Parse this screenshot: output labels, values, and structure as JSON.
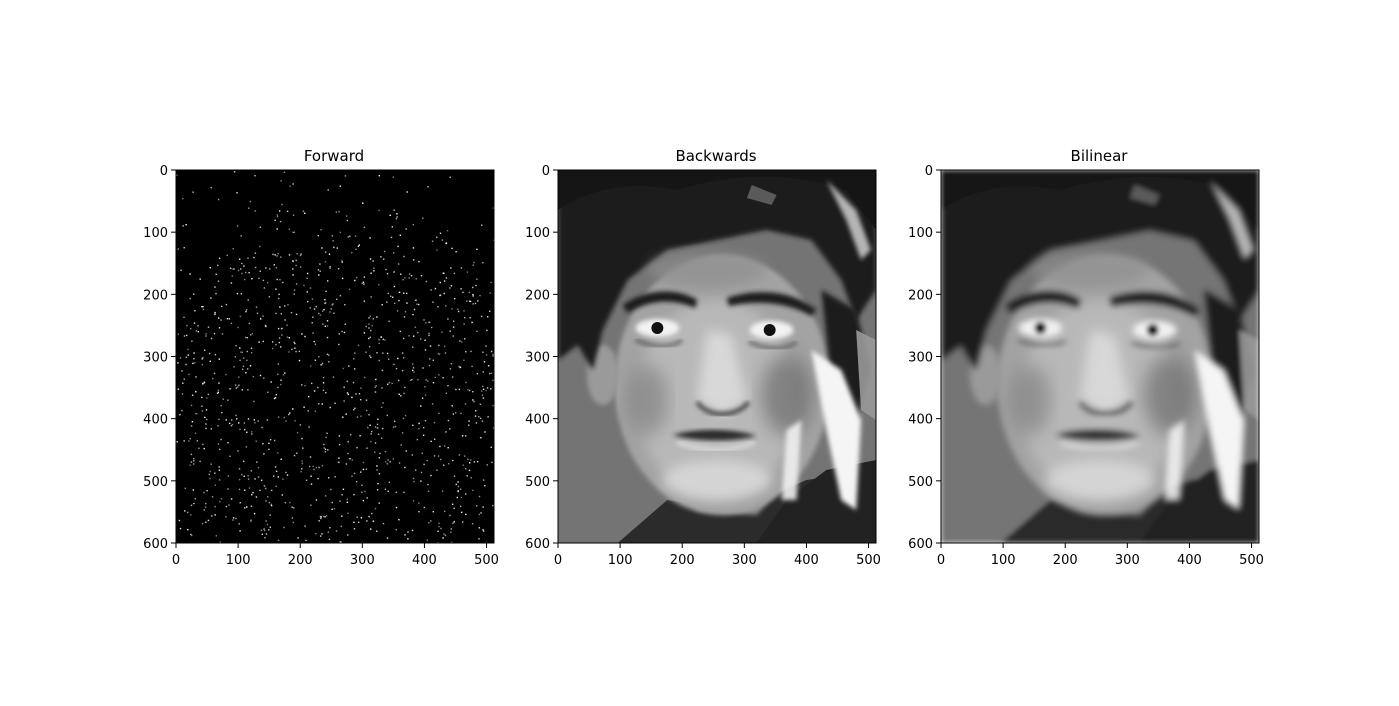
{
  "chart_data": [
    {
      "type": "heatmap",
      "title": "Forward",
      "image_content": "sparse scattered white pixels on black (forward-mapped warp with holes)",
      "colormap": "gray",
      "xlim": [
        0,
        512
      ],
      "ylim": [
        600,
        0
      ],
      "xticks": [
        0,
        100,
        200,
        300,
        400,
        500
      ],
      "yticks": [
        0,
        100,
        200,
        300,
        400,
        500,
        600
      ],
      "xlabel": "",
      "ylabel": ""
    },
    {
      "type": "heatmap",
      "title": "Backwards",
      "image_content": "grayscale portrait of a man's face (backward-mapped, nearest neighbour)",
      "colormap": "gray",
      "xlim": [
        0,
        512
      ],
      "ylim": [
        600,
        0
      ],
      "xticks": [
        0,
        100,
        200,
        300,
        400,
        500
      ],
      "yticks": [
        0,
        100,
        200,
        300,
        400,
        500,
        600
      ],
      "xlabel": "",
      "ylabel": ""
    },
    {
      "type": "heatmap",
      "title": "Bilinear",
      "image_content": "grayscale portrait of a man's face (bilinear interpolation, smoother)",
      "colormap": "gray",
      "xlim": [
        0,
        512
      ],
      "ylim": [
        600,
        0
      ],
      "xticks": [
        0,
        100,
        200,
        300,
        400,
        500
      ],
      "yticks": [
        0,
        100,
        200,
        300,
        400,
        500,
        600
      ],
      "xlabel": "",
      "ylabel": ""
    }
  ]
}
